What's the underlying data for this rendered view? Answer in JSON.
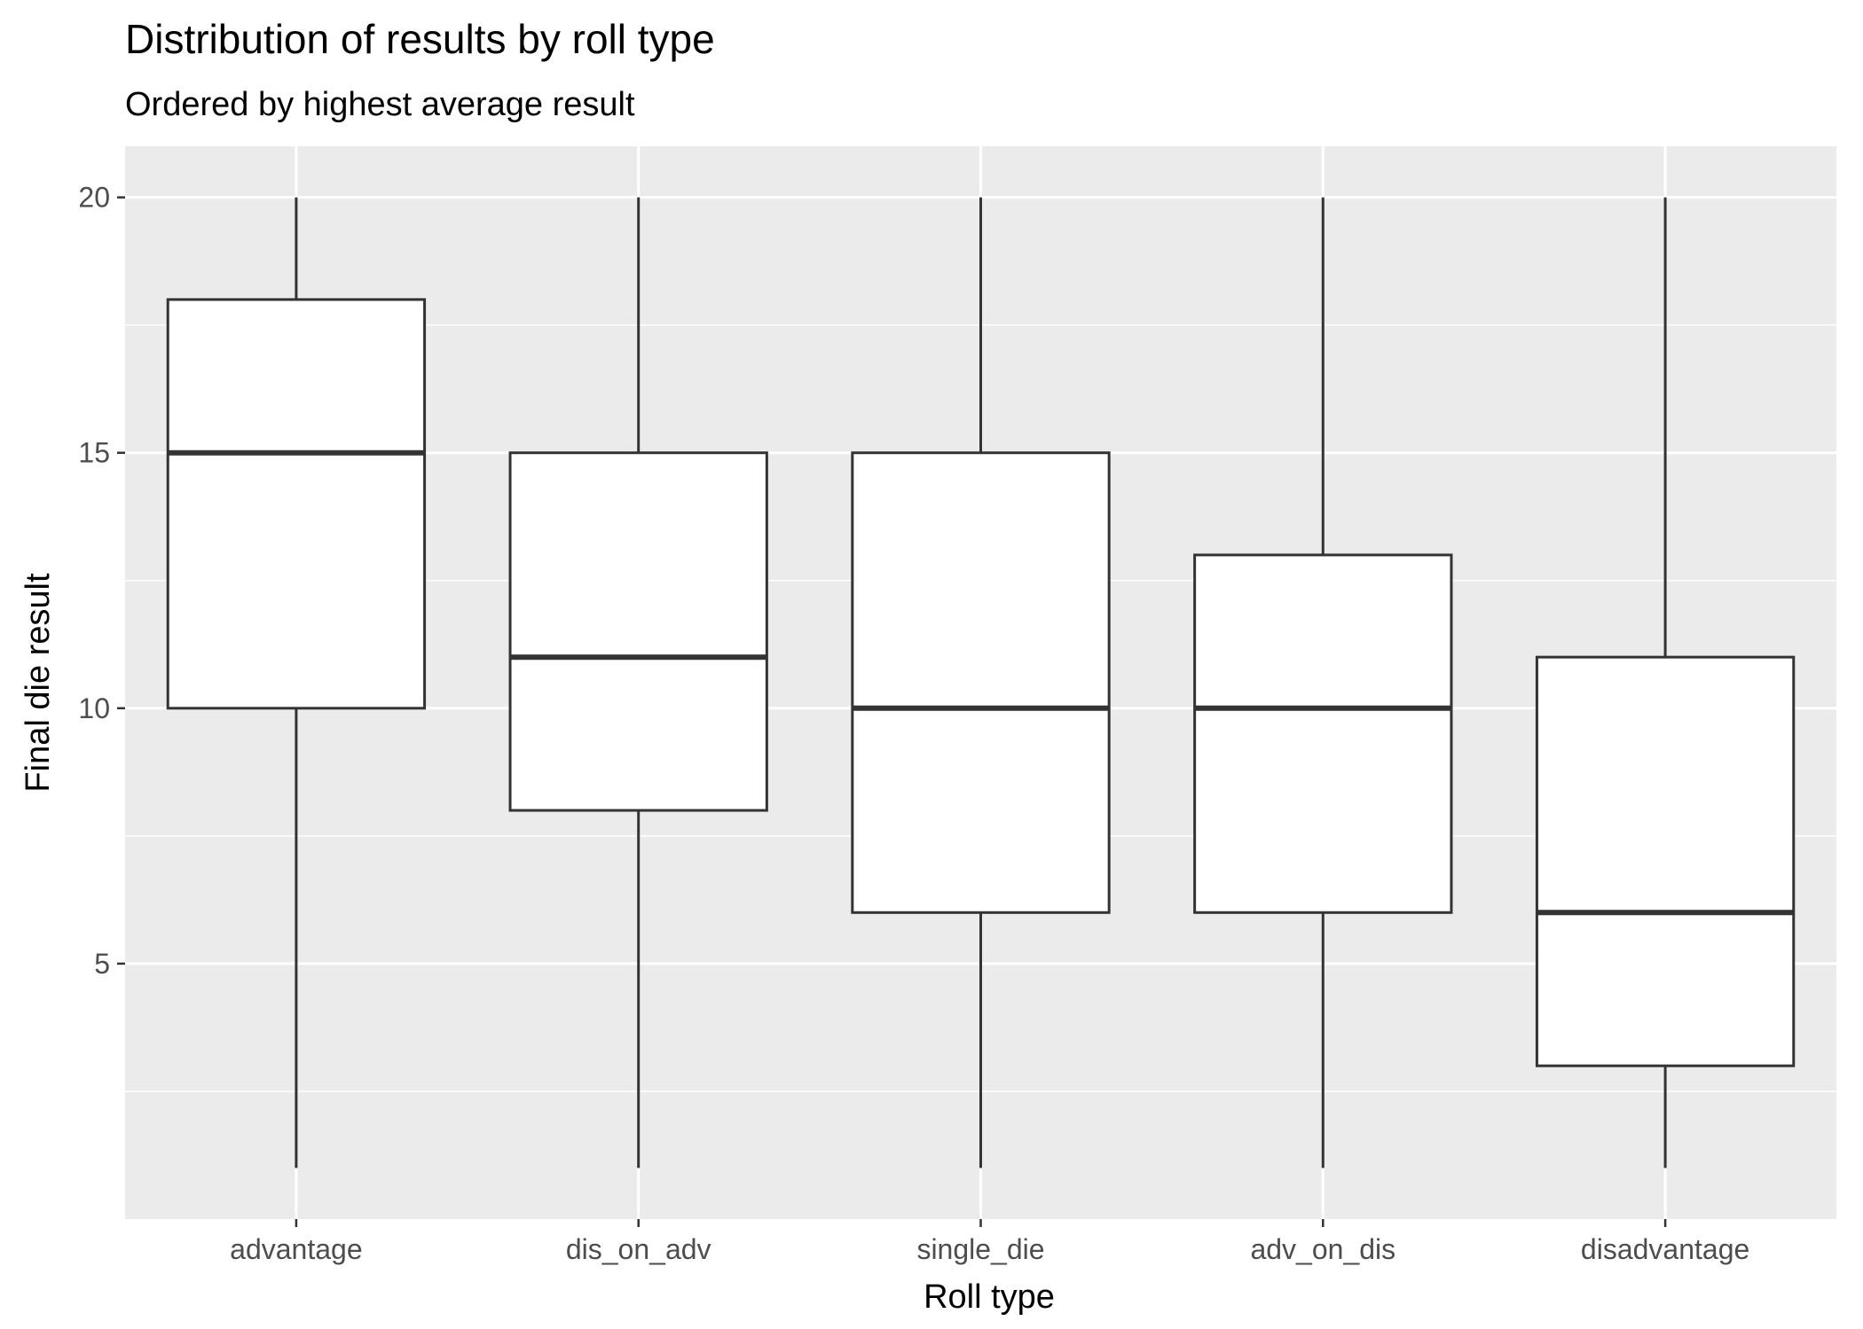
{
  "chart_data": {
    "type": "boxplot",
    "title": "Distribution of results by roll type",
    "subtitle": "Ordered by highest average result",
    "xlabel": "Roll type",
    "ylabel": "Final die result",
    "ylim": [
      0,
      21
    ],
    "yticks": [
      5,
      10,
      15,
      20
    ],
    "grid": true,
    "background": "#ebebeb",
    "categories": [
      "advantage",
      "dis_on_adv",
      "single_die",
      "adv_on_dis",
      "disadvantage"
    ],
    "boxes": [
      {
        "category": "advantage",
        "min": 1,
        "q1": 10,
        "median": 15,
        "q3": 18,
        "max": 20
      },
      {
        "category": "dis_on_adv",
        "min": 1,
        "q1": 8,
        "median": 11,
        "q3": 15,
        "max": 20
      },
      {
        "category": "single_die",
        "min": 1,
        "q1": 6,
        "median": 10,
        "q3": 15,
        "max": 20
      },
      {
        "category": "adv_on_dis",
        "min": 1,
        "q1": 6,
        "median": 10,
        "q3": 13,
        "max": 20
      },
      {
        "category": "disadvantage",
        "min": 1,
        "q1": 3,
        "median": 6,
        "q3": 11,
        "max": 20
      }
    ]
  }
}
